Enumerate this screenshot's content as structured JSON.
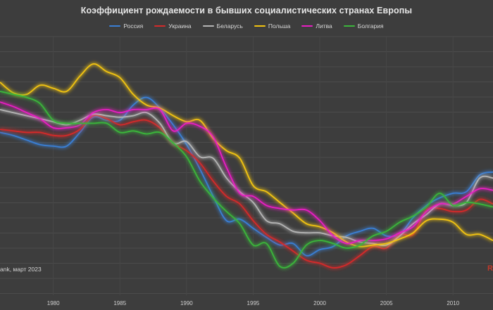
{
  "title": "Коэффициент рождаемости в бывших социалистических странах Европы",
  "source": "ank, март 2023",
  "brand": "R",
  "chart_data": {
    "type": "line",
    "title": "Коэффициент рождаемости в бывших социалистических странах Европы",
    "xlabel": "",
    "ylabel": "",
    "xlim": [
      1976,
      2013
    ],
    "ylim": [
      0.9,
      2.6
    ],
    "x_ticks": [
      1980,
      1985,
      1990,
      1995,
      2000,
      2005,
      2010
    ],
    "grid": true,
    "legend": "top-center",
    "x": [
      1976,
      1977,
      1978,
      1979,
      1980,
      1981,
      1982,
      1983,
      1984,
      1985,
      1986,
      1987,
      1988,
      1989,
      1990,
      1991,
      1992,
      1993,
      1994,
      1995,
      1996,
      1997,
      1998,
      1999,
      2000,
      2001,
      2002,
      2003,
      2004,
      2005,
      2006,
      2007,
      2008,
      2009,
      2010,
      2011,
      2012,
      2013
    ],
    "series": [
      {
        "name": "Россия",
        "color": "#3a7fd5",
        "values": [
          1.97,
          1.95,
          1.92,
          1.89,
          1.88,
          1.88,
          1.97,
          2.07,
          2.05,
          2.05,
          2.15,
          2.2,
          2.13,
          2.02,
          1.89,
          1.73,
          1.55,
          1.39,
          1.4,
          1.34,
          1.28,
          1.23,
          1.24,
          1.16,
          1.2,
          1.22,
          1.29,
          1.32,
          1.34,
          1.29,
          1.3,
          1.41,
          1.49,
          1.54,
          1.57,
          1.58,
          1.69,
          1.71
        ]
      },
      {
        "name": "Украина",
        "color": "#d42a2a",
        "values": [
          1.99,
          1.98,
          1.97,
          1.97,
          1.95,
          1.95,
          1.99,
          2.08,
          2.06,
          2.02,
          2.04,
          2.05,
          2.0,
          1.9,
          1.85,
          1.77,
          1.65,
          1.55,
          1.5,
          1.39,
          1.3,
          1.25,
          1.19,
          1.13,
          1.11,
          1.08,
          1.1,
          1.16,
          1.22,
          1.21,
          1.3,
          1.3,
          1.46,
          1.47,
          1.45,
          1.46,
          1.53,
          1.5
        ]
      },
      {
        "name": "Беларусь",
        "color": "#b5b5b5",
        "values": [
          2.12,
          2.1,
          2.08,
          2.06,
          2.04,
          2.02,
          2.05,
          2.09,
          2.08,
          2.07,
          2.08,
          2.1,
          2.03,
          1.9,
          1.91,
          1.81,
          1.8,
          1.67,
          1.58,
          1.51,
          1.39,
          1.37,
          1.32,
          1.31,
          1.31,
          1.29,
          1.28,
          1.25,
          1.24,
          1.23,
          1.29,
          1.37,
          1.43,
          1.5,
          1.49,
          1.51,
          1.67,
          1.67
        ]
      },
      {
        "name": "Польша",
        "color": "#f2c40f",
        "values": [
          2.3,
          2.23,
          2.22,
          2.28,
          2.26,
          2.24,
          2.34,
          2.42,
          2.37,
          2.33,
          2.22,
          2.15,
          2.13,
          2.08,
          2.04,
          2.05,
          1.93,
          1.85,
          1.8,
          1.62,
          1.58,
          1.51,
          1.44,
          1.37,
          1.35,
          1.31,
          1.25,
          1.22,
          1.23,
          1.24,
          1.27,
          1.31,
          1.39,
          1.4,
          1.38,
          1.3,
          1.3,
          1.26
        ]
      },
      {
        "name": "Литва",
        "color": "#e91ec3",
        "values": [
          2.17,
          2.14,
          2.1,
          2.06,
          2.0,
          2.0,
          2.02,
          2.1,
          2.12,
          2.1,
          2.12,
          2.12,
          2.12,
          1.98,
          2.03,
          2.01,
          1.94,
          1.74,
          1.57,
          1.55,
          1.49,
          1.47,
          1.46,
          1.46,
          1.39,
          1.29,
          1.24,
          1.26,
          1.26,
          1.27,
          1.31,
          1.35,
          1.45,
          1.5,
          1.5,
          1.55,
          1.6,
          1.59
        ]
      },
      {
        "name": "Болгария",
        "color": "#3bb53b",
        "values": [
          2.24,
          2.22,
          2.2,
          2.16,
          2.05,
          2.03,
          2.03,
          2.03,
          2.03,
          1.97,
          1.98,
          1.96,
          1.97,
          1.9,
          1.81,
          1.65,
          1.54,
          1.45,
          1.37,
          1.23,
          1.24,
          1.09,
          1.11,
          1.23,
          1.26,
          1.24,
          1.21,
          1.23,
          1.29,
          1.32,
          1.38,
          1.42,
          1.48,
          1.57,
          1.49,
          1.51,
          1.5,
          1.48
        ]
      }
    ]
  }
}
